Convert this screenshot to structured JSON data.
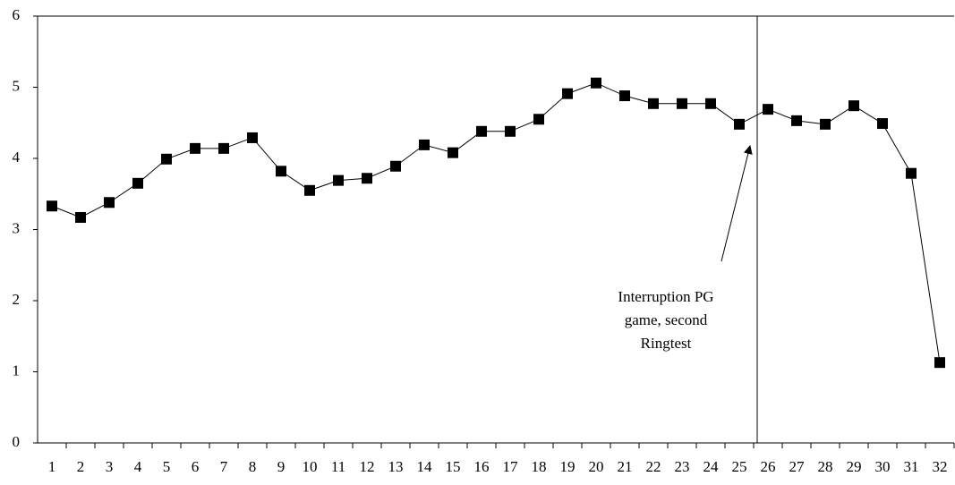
{
  "chart_data": {
    "type": "line",
    "categories": [
      "1",
      "2",
      "3",
      "4",
      "5",
      "6",
      "7",
      "8",
      "9",
      "10",
      "11",
      "12",
      "13",
      "14",
      "15",
      "16",
      "17",
      "18",
      "19",
      "20",
      "21",
      "22",
      "23",
      "24",
      "25",
      "26",
      "27",
      "28",
      "29",
      "30",
      "31",
      "32"
    ],
    "series": [
      {
        "color": "#000000",
        "values": [
          3.33,
          3.17,
          3.38,
          3.65,
          3.99,
          4.14,
          4.14,
          4.29,
          3.82,
          3.55,
          3.69,
          3.72,
          3.89,
          4.19,
          4.08,
          4.38,
          4.38,
          4.55,
          4.91,
          5.06,
          4.88,
          4.77,
          4.77,
          4.77,
          4.48,
          4.69,
          4.53,
          4.48,
          4.74,
          4.49,
          3.79,
          1.13
        ]
      }
    ],
    "ylim": [
      0,
      6
    ],
    "yticks": [
      0,
      1,
      2,
      3,
      4,
      5,
      6
    ],
    "annotation": [
      "Interruption PG",
      "game, second",
      "Ringtest"
    ]
  }
}
